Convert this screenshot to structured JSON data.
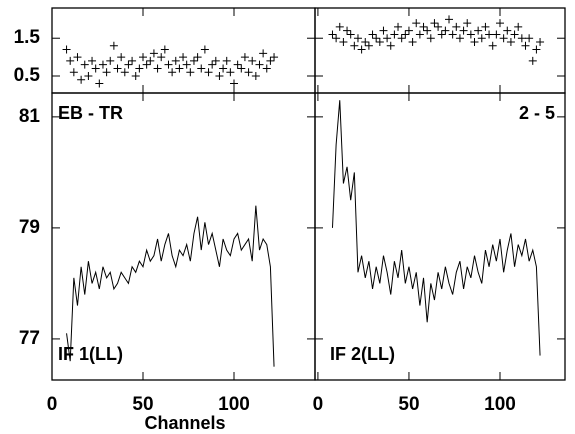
{
  "chart_data": [
    {
      "type": "scatter",
      "xlim": [
        0,
        144.5
      ],
      "ylim": [
        0.05,
        2.3
      ],
      "yticks": [
        0.5,
        1.5
      ],
      "color": "#000000",
      "x": [
        8,
        10,
        12,
        14,
        16,
        18,
        20,
        22,
        24,
        26,
        28,
        30,
        32,
        34,
        36,
        38,
        40,
        42,
        44,
        46,
        48,
        50,
        52,
        54,
        56,
        58,
        60,
        62,
        64,
        66,
        68,
        70,
        72,
        74,
        76,
        78,
        80,
        82,
        84,
        86,
        88,
        90,
        92,
        94,
        96,
        98,
        100,
        102,
        104,
        106,
        108,
        110,
        112,
        114,
        116,
        118,
        120,
        122
      ],
      "values": [
        1.2,
        0.9,
        0.6,
        1.0,
        0.4,
        0.8,
        0.5,
        0.9,
        0.7,
        0.3,
        0.8,
        0.6,
        0.9,
        1.3,
        0.7,
        1.0,
        0.6,
        0.8,
        0.9,
        0.5,
        0.7,
        1.0,
        0.8,
        0.9,
        1.1,
        0.7,
        1.0,
        1.2,
        0.8,
        0.6,
        0.9,
        0.7,
        1.0,
        0.8,
        0.6,
        0.9,
        1.0,
        0.7,
        1.2,
        0.6,
        0.8,
        0.9,
        0.5,
        0.7,
        0.9,
        0.6,
        0.3,
        0.8,
        0.7,
        1.0,
        0.6,
        0.9,
        0.5,
        0.8,
        1.1,
        0.7,
        0.9,
        1.0
      ]
    },
    {
      "type": "scatter",
      "xlim": [
        -1.6,
        135.7
      ],
      "ylim": [
        0.05,
        2.3
      ],
      "color": "#000000",
      "x": [
        8,
        10,
        12,
        14,
        16,
        18,
        20,
        22,
        24,
        26,
        28,
        30,
        32,
        34,
        36,
        38,
        40,
        42,
        44,
        46,
        48,
        50,
        52,
        54,
        56,
        58,
        60,
        62,
        64,
        66,
        68,
        70,
        72,
        74,
        76,
        78,
        80,
        82,
        84,
        86,
        88,
        90,
        92,
        94,
        96,
        98,
        100,
        102,
        104,
        106,
        108,
        110,
        112,
        114,
        116,
        118,
        120,
        122
      ],
      "values": [
        1.6,
        1.5,
        1.8,
        1.4,
        1.7,
        1.6,
        1.3,
        1.5,
        1.2,
        1.4,
        1.3,
        1.6,
        1.5,
        1.4,
        1.7,
        1.5,
        1.3,
        1.6,
        1.8,
        1.5,
        1.6,
        1.7,
        1.4,
        1.9,
        1.6,
        1.8,
        1.7,
        1.5,
        1.9,
        1.8,
        1.6,
        1.7,
        2.0,
        1.6,
        1.8,
        1.5,
        1.7,
        1.9,
        1.6,
        1.4,
        1.7,
        1.5,
        1.8,
        1.6,
        1.3,
        1.6,
        1.9,
        1.5,
        1.7,
        1.4,
        1.6,
        1.8,
        1.5,
        1.3,
        1.5,
        0.9,
        1.2,
        1.4
      ]
    },
    {
      "type": "line",
      "xlim": [
        0,
        144.5
      ],
      "ylim": [
        76.26,
        81.43
      ],
      "yticks": [
        77,
        79,
        81
      ],
      "xticks": [
        0,
        50,
        100
      ],
      "xlabel": "Channels",
      "color": "#000000",
      "annotations": [
        "EB - TR",
        "IF 1(LL)"
      ],
      "x": [
        8,
        10,
        12,
        14,
        16,
        18,
        20,
        22,
        24,
        26,
        28,
        30,
        32,
        34,
        36,
        38,
        40,
        42,
        44,
        46,
        48,
        50,
        52,
        54,
        56,
        58,
        60,
        62,
        64,
        66,
        68,
        70,
        72,
        74,
        76,
        78,
        80,
        82,
        84,
        86,
        88,
        90,
        92,
        94,
        96,
        98,
        100,
        102,
        104,
        106,
        108,
        110,
        112,
        114,
        116,
        118,
        120,
        122
      ],
      "values": [
        77.1,
        76.6,
        78.1,
        77.6,
        78.3,
        77.8,
        78.4,
        78.0,
        78.2,
        77.9,
        78.3,
        78.1,
        78.2,
        77.9,
        78.0,
        78.2,
        78.1,
        78.0,
        78.3,
        78.2,
        78.4,
        78.3,
        78.6,
        78.4,
        78.5,
        78.8,
        78.4,
        78.7,
        78.9,
        78.5,
        78.3,
        78.6,
        78.5,
        78.7,
        78.4,
        78.9,
        79.2,
        78.6,
        79.1,
        78.7,
        78.9,
        78.6,
        78.3,
        78.8,
        78.6,
        78.5,
        78.8,
        78.9,
        78.6,
        78.7,
        78.8,
        78.4,
        79.4,
        78.6,
        78.8,
        78.7,
        78.3,
        76.5
      ]
    },
    {
      "type": "line",
      "xlim": [
        -1.6,
        135.7
      ],
      "ylim": [
        76.26,
        81.43
      ],
      "xticks": [
        0,
        50,
        100
      ],
      "color": "#000000",
      "annotations": [
        "2 - 5",
        "IF 2(LL)"
      ],
      "x": [
        8,
        10,
        12,
        14,
        16,
        18,
        20,
        22,
        24,
        26,
        28,
        30,
        32,
        34,
        36,
        38,
        40,
        42,
        44,
        46,
        48,
        50,
        52,
        54,
        56,
        58,
        60,
        62,
        64,
        66,
        68,
        70,
        72,
        74,
        76,
        78,
        80,
        82,
        84,
        86,
        88,
        90,
        92,
        94,
        96,
        98,
        100,
        102,
        104,
        106,
        108,
        110,
        112,
        114,
        116,
        118,
        120,
        122
      ],
      "values": [
        79.0,
        80.5,
        81.3,
        79.8,
        80.1,
        79.5,
        80.0,
        78.2,
        78.5,
        78.1,
        78.4,
        77.9,
        78.3,
        78.0,
        78.5,
        78.2,
        77.8,
        78.4,
        78.1,
        78.6,
        78.0,
        78.3,
        77.9,
        78.2,
        77.6,
        78.1,
        77.3,
        78.0,
        77.7,
        78.2,
        77.9,
        78.3,
        78.0,
        77.8,
        78.2,
        78.4,
        77.9,
        78.3,
        78.1,
        78.5,
        78.2,
        78.0,
        78.6,
        78.3,
        78.7,
        78.4,
        78.8,
        78.2,
        78.6,
        78.9,
        78.3,
        78.7,
        78.5,
        78.8,
        78.4,
        78.6,
        78.3,
        76.7
      ]
    }
  ]
}
